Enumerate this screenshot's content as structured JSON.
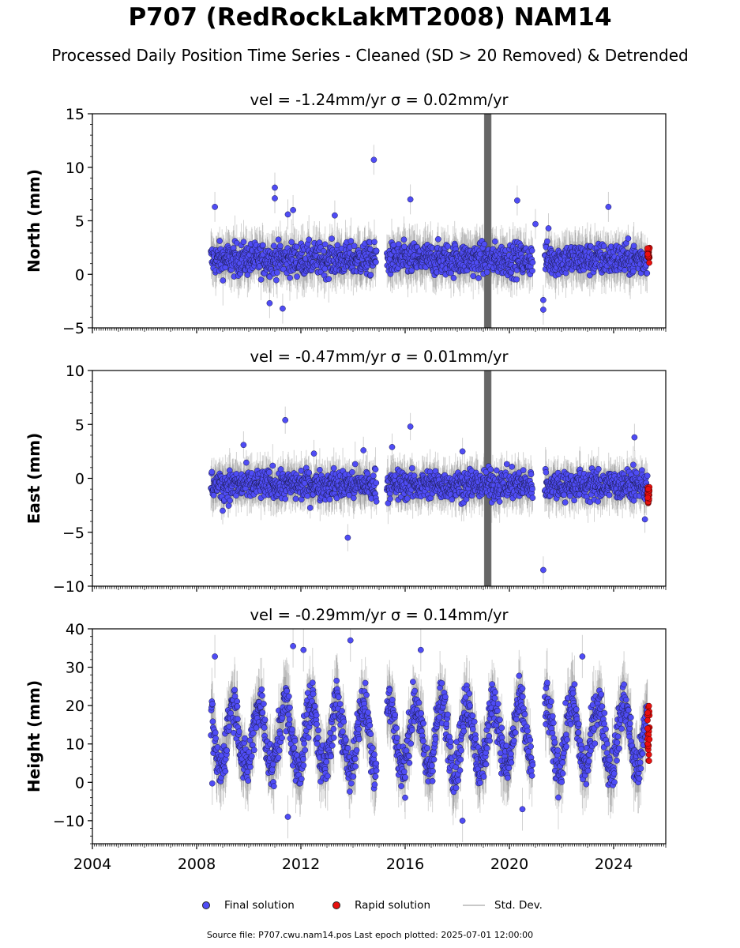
{
  "title": "P707 (RedRockLakMT2008) NAM14",
  "subtitle": "Processed Daily Position Time Series - Cleaned (SD > 20 Removed) & Detrended",
  "legend": {
    "final": "Final solution",
    "rapid": "Rapid solution",
    "std": "Std. Dev."
  },
  "footer": "Source file: P707.cwu.nam14.pos  Last epoch plotted: 2025-07-01 12:00:00",
  "colors": {
    "final": "#4f4cf5",
    "rapid": "#e8100e",
    "std": "#666666"
  },
  "chart_data": [
    {
      "type": "scatter",
      "panel": "north",
      "title": "vel = -1.24mm/yr   σ = 0.02mm/yr",
      "ylabel": "North (mm)",
      "xlim": [
        2004.0,
        2026.0
      ],
      "ylim": [
        -5,
        15
      ],
      "yticks": [
        -5,
        0,
        5,
        10,
        15
      ],
      "yticklabels": [
        "−5",
        "0",
        "5",
        "10",
        "15"
      ],
      "xticks": [
        2004,
        2008,
        2012,
        2016,
        2020,
        2024
      ],
      "data_start": 2008.55,
      "data_end": 2025.3,
      "gaps": [
        [
          2014.9,
          2015.3
        ],
        [
          2020.9,
          2021.35
        ]
      ],
      "center": 1.4,
      "scatter": 1.0,
      "spike": [
        2019.05,
        2019.3
      ],
      "rapid": [
        2025.3,
        2025.5
      ],
      "rapid_range": [
        0.9,
        2.5
      ],
      "outliers": [
        [
          2008.7,
          6.3
        ],
        [
          2011.0,
          7.1
        ],
        [
          2011.0,
          8.1
        ],
        [
          2011.5,
          5.6
        ],
        [
          2011.7,
          6.0
        ],
        [
          2013.3,
          5.5
        ],
        [
          2014.8,
          10.7
        ],
        [
          2016.2,
          7.0
        ],
        [
          2020.3,
          6.9
        ],
        [
          2023.8,
          6.3
        ],
        [
          2010.8,
          -2.7
        ],
        [
          2011.3,
          -3.2
        ],
        [
          2021.3,
          -3.3
        ],
        [
          2021.3,
          -2.4
        ],
        [
          2021.0,
          4.7
        ],
        [
          2021.5,
          4.3
        ]
      ]
    },
    {
      "type": "scatter",
      "panel": "east",
      "title": "vel = -0.47mm/yr   σ = 0.01mm/yr",
      "ylabel": "East (mm)",
      "xlim": [
        2004.0,
        2026.0
      ],
      "ylim": [
        -10,
        10
      ],
      "yticks": [
        -10,
        -5,
        0,
        5,
        10
      ],
      "yticklabels": [
        "−10",
        "−5",
        "0",
        "5",
        "10"
      ],
      "xticks": [
        2004,
        2008,
        2012,
        2016,
        2020,
        2024
      ],
      "data_start": 2008.55,
      "data_end": 2025.3,
      "gaps": [
        [
          2014.9,
          2015.3
        ],
        [
          2020.9,
          2021.35
        ]
      ],
      "center": -0.6,
      "scatter": 0.9,
      "spike": [
        2019.05,
        2019.3
      ],
      "rapid": [
        2025.3,
        2025.5
      ],
      "rapid_range": [
        -2.3,
        -0.8
      ],
      "outliers": [
        [
          2009.8,
          3.1
        ],
        [
          2011.4,
          5.4
        ],
        [
          2012.5,
          2.3
        ],
        [
          2014.4,
          2.6
        ],
        [
          2015.5,
          2.9
        ],
        [
          2016.2,
          4.8
        ],
        [
          2018.2,
          2.5
        ],
        [
          2024.8,
          3.8
        ],
        [
          2013.8,
          -5.5
        ],
        [
          2021.3,
          -8.5
        ],
        [
          2025.2,
          -3.8
        ],
        [
          2009.0,
          -3.0
        ]
      ]
    },
    {
      "type": "scatter",
      "panel": "height",
      "title": "vel = -0.29mm/yr   σ = 0.14mm/yr",
      "ylabel": "Height (mm)",
      "xlim": [
        2004.0,
        2026.0
      ],
      "ylim": [
        -16,
        40
      ],
      "yticks": [
        -10,
        0,
        10,
        20,
        30,
        40
      ],
      "yticklabels": [
        "−10",
        "0",
        "10",
        "20",
        "30",
        "40"
      ],
      "xticks": [
        2004,
        2008,
        2012,
        2016,
        2020,
        2024
      ],
      "xticklabels": [
        "2004",
        "2008",
        "2012",
        "2016",
        "2020",
        "2024"
      ],
      "data_start": 2008.55,
      "data_end": 2025.3,
      "gaps": [
        [
          2014.9,
          2015.3
        ],
        [
          2020.9,
          2021.35
        ]
      ],
      "center": 12.0,
      "scatter": 4.0,
      "seasonal": 8.5,
      "spike": null,
      "rapid": [
        2025.3,
        2025.5
      ],
      "rapid_range": [
        5.0,
        20.0
      ],
      "outliers": [
        [
          2008.7,
          32.8
        ],
        [
          2011.7,
          35.5
        ],
        [
          2013.9,
          37.0
        ],
        [
          2016.6,
          34.5
        ],
        [
          2022.8,
          32.8
        ],
        [
          2012.1,
          34.5
        ],
        [
          2011.5,
          -9.0
        ],
        [
          2018.2,
          -10.0
        ],
        [
          2020.5,
          -7.0
        ],
        [
          2016.0,
          -4.0
        ],
        [
          2008.6,
          -0.3
        ]
      ]
    }
  ]
}
